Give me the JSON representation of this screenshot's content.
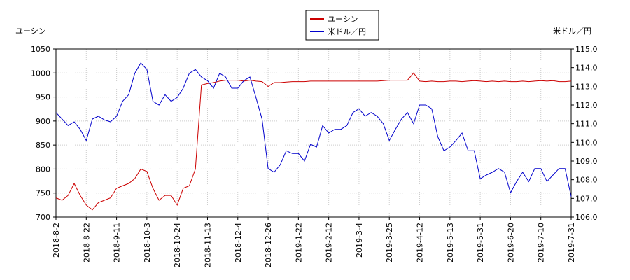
{
  "chart_data": {
    "type": "line",
    "y_label": "ユーシン",
    "y2_label": "米ドル／円",
    "categories": [
      "2018-8-2",
      null,
      null,
      null,
      null,
      "2018-8-22",
      null,
      null,
      null,
      null,
      "2018-9-11",
      null,
      null,
      null,
      null,
      "2018-10-3",
      null,
      null,
      null,
      null,
      "2018-10-24",
      null,
      null,
      null,
      null,
      "2018-11-13",
      null,
      null,
      null,
      null,
      "2018-12-4",
      null,
      null,
      null,
      null,
      "2018-12-26",
      null,
      null,
      null,
      null,
      "2019-1-22",
      null,
      null,
      null,
      null,
      "2019-2-12",
      null,
      null,
      null,
      null,
      "2019-3-4",
      null,
      null,
      null,
      null,
      "2019-3-25",
      null,
      null,
      null,
      null,
      "2019-4-12",
      null,
      null,
      null,
      null,
      "2019-5-13",
      null,
      null,
      null,
      null,
      "2019-5-31",
      null,
      null,
      null,
      null,
      "2019-6-20",
      null,
      null,
      null,
      null,
      "2019-7-10",
      null,
      null,
      null,
      null,
      "2019-7-31"
    ],
    "series": [
      {
        "name": "ユーシン",
        "color": "#cc0000",
        "axis": "y",
        "values": [
          740,
          735,
          745,
          770,
          745,
          725,
          715,
          730,
          735,
          740,
          760,
          765,
          770,
          780,
          800,
          795,
          760,
          735,
          745,
          745,
          725,
          760,
          765,
          800,
          975,
          978,
          980,
          983,
          985,
          985,
          985,
          983,
          985,
          983,
          982,
          972,
          980,
          980,
          981,
          982,
          982,
          982,
          983,
          983,
          983,
          983,
          983,
          983,
          983,
          983,
          983,
          983,
          983,
          983,
          984,
          985,
          985,
          985,
          985,
          1000,
          983,
          982,
          983,
          982,
          982,
          983,
          983,
          982,
          983,
          984,
          983,
          982,
          983,
          982,
          983,
          982,
          982,
          983,
          982,
          983,
          984,
          983,
          984,
          982,
          982,
          983
        ]
      },
      {
        "name": "米ドル／円",
        "color": "#0000cc",
        "axis": "y2",
        "values": [
          111.6,
          111.25,
          110.9,
          111.1,
          110.7,
          110.1,
          111.25,
          111.4,
          111.2,
          111.1,
          111.4,
          112.2,
          112.55,
          113.7,
          114.25,
          113.9,
          112.2,
          112.0,
          112.55,
          112.2,
          112.4,
          112.9,
          113.7,
          113.9,
          113.5,
          113.3,
          112.9,
          113.7,
          113.5,
          112.9,
          112.9,
          113.3,
          113.5,
          112.4,
          111.25,
          108.6,
          108.4,
          108.8,
          109.55,
          109.4,
          109.4,
          109.0,
          109.9,
          109.75,
          110.9,
          110.5,
          110.7,
          110.7,
          110.9,
          111.6,
          111.8,
          111.4,
          111.6,
          111.4,
          111.0,
          110.1,
          110.7,
          111.25,
          111.6,
          111.0,
          112.0,
          112.0,
          111.8,
          110.3,
          109.55,
          109.75,
          110.1,
          110.5,
          109.55,
          109.55,
          108.05,
          108.25,
          108.4,
          108.6,
          108.4,
          107.3,
          107.9,
          108.4,
          107.9,
          108.6,
          108.6,
          107.9,
          108.25,
          108.6,
          108.6,
          107.1
        ]
      }
    ],
    "ylim": [
      700,
      1050
    ],
    "yticks": [
      700,
      750,
      800,
      850,
      900,
      950,
      1000,
      1050
    ],
    "y2lim": [
      106,
      115
    ],
    "y2ticks": [
      {
        "value": 106,
        "label": "106.0"
      },
      {
        "value": 107,
        "label": "107.0"
      },
      {
        "value": 108,
        "label": "108.0"
      },
      {
        "value": 109,
        "label": "109.0"
      },
      {
        "value": 110,
        "label": "110.0"
      },
      {
        "value": 111,
        "label": "111.0"
      },
      {
        "value": 112,
        "label": "112.0"
      },
      {
        "value": 113,
        "label": "113.0"
      },
      {
        "value": 114,
        "label": "114.0"
      },
      {
        "value": 115,
        "label": "115.0"
      }
    ],
    "grid": true
  }
}
